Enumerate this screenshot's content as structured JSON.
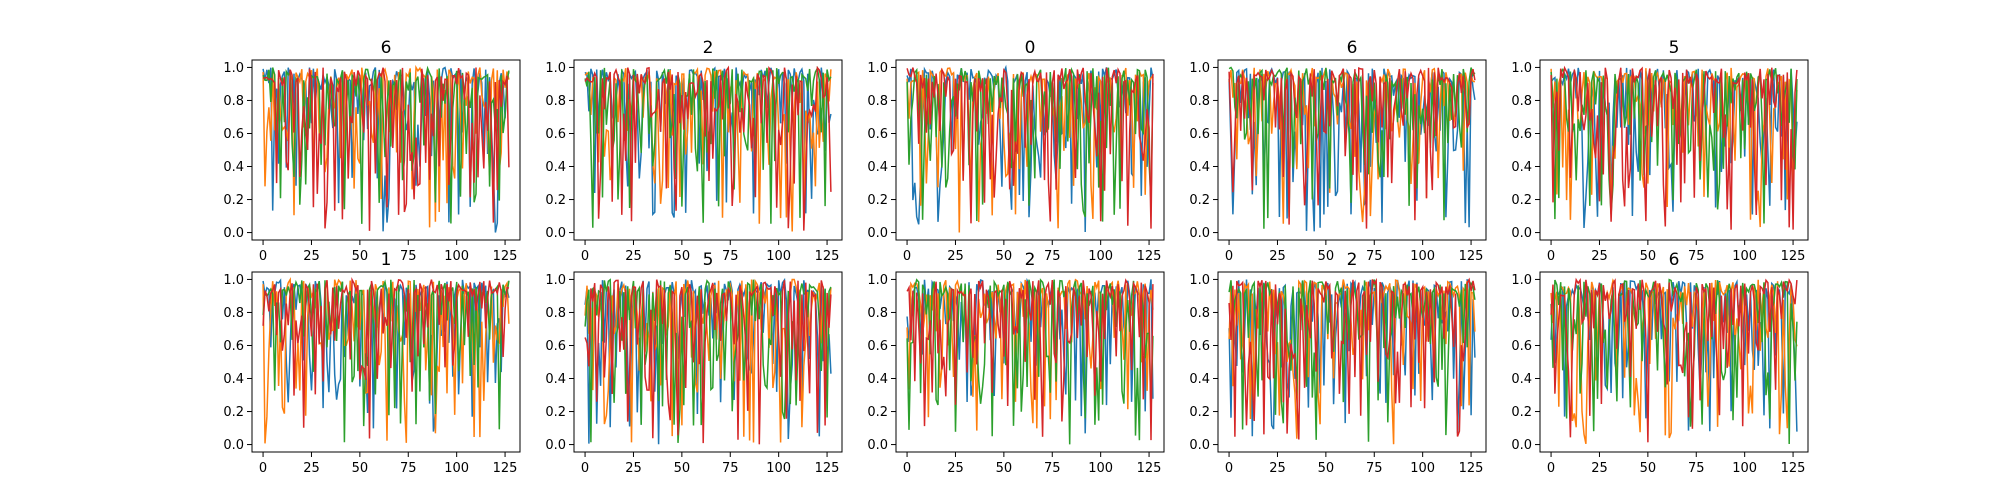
{
  "chart_data": {
    "type": "line",
    "grid": false,
    "legend": "none",
    "colors": [
      "#1f77b4",
      "#ff7f0e",
      "#2ca02c",
      "#d62728"
    ],
    "xlim": [
      0,
      127
    ],
    "ylim": [
      0.0,
      1.0
    ],
    "xticks": [
      "0",
      "25",
      "50",
      "75",
      "100",
      "125"
    ],
    "yticks": [
      "0.0",
      "0.2",
      "0.4",
      "0.6",
      "0.8",
      "1.0"
    ],
    "series_count": 4,
    "points_per_series": 128,
    "panels": [
      {
        "title": "6"
      },
      {
        "title": "2"
      },
      {
        "title": "0"
      },
      {
        "title": "6"
      },
      {
        "title": "5"
      },
      {
        "title": "1"
      },
      {
        "title": "5"
      },
      {
        "title": "2"
      },
      {
        "title": "2"
      },
      {
        "title": "6"
      }
    ]
  }
}
